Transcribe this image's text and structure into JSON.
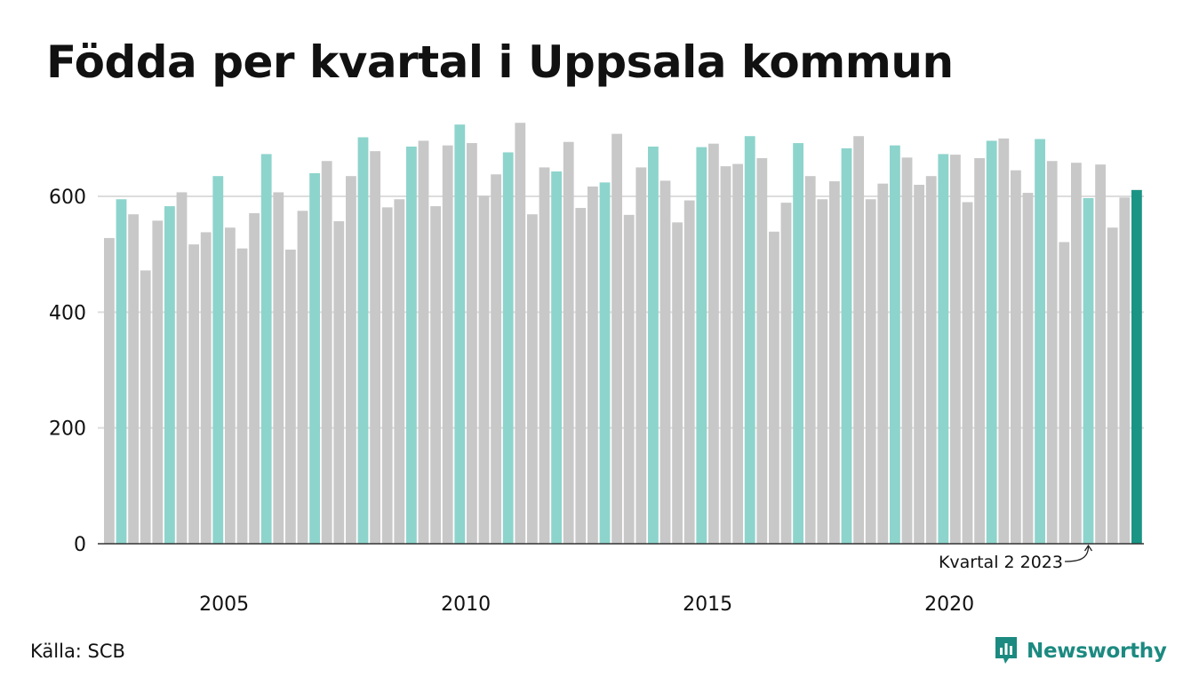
{
  "title": "Födda per kvartal i Uppsala kommun",
  "source": "Källa: SCB",
  "brand": {
    "name": "Newsworthy",
    "icon": "bar-chart-speech-bubble-icon"
  },
  "colors": {
    "other_quarters": "#c8c8c8",
    "same_quarter": "#8dd4cc",
    "latest_quarter": "#1a9485",
    "gridline": "#dddddd",
    "baseline": "#333333",
    "brand": "#1c8a80"
  },
  "chart_data": {
    "type": "bar",
    "title": "Födda per kvartal i Uppsala kommun",
    "xlabel": "",
    "ylabel": "",
    "ylim": [
      0,
      740
    ],
    "yticks": [
      0,
      200,
      400,
      600
    ],
    "xtick_labels": [
      "2005",
      "2010",
      "2015",
      "2020"
    ],
    "grid": true,
    "legend": "none",
    "start": {
      "year": 2003,
      "quarter": 1
    },
    "highlight_quarter": 2,
    "annotation": {
      "text": "Kvartal 2 2023",
      "target": "2023 Q2"
    },
    "values": [
      528,
      595,
      569,
      472,
      558,
      583,
      607,
      517,
      538,
      635,
      546,
      510,
      571,
      673,
      607,
      508,
      575,
      640,
      661,
      557,
      635,
      702,
      678,
      581,
      595,
      686,
      696,
      583,
      688,
      724,
      692,
      601,
      638,
      676,
      727,
      569,
      650,
      643,
      694,
      580,
      617,
      624,
      708,
      568,
      650,
      686,
      627,
      555,
      593,
      685,
      691,
      652,
      656,
      704,
      666,
      539,
      589,
      692,
      635,
      595,
      626,
      683,
      704,
      595,
      622,
      688,
      667,
      620,
      635,
      673,
      672,
      590,
      666,
      696,
      700,
      645,
      606,
      699,
      661,
      521,
      658,
      597,
      655,
      546,
      598,
      611
    ]
  }
}
